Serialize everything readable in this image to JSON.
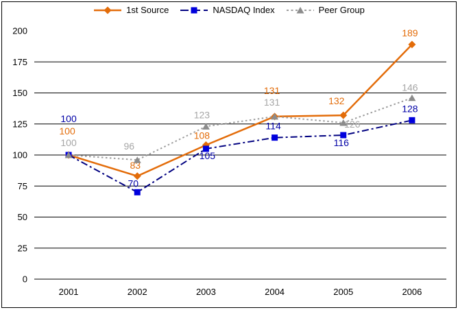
{
  "chart_data": {
    "type": "line",
    "title": "",
    "categories": [
      "2001",
      "2002",
      "2003",
      "2004",
      "2005",
      "2006"
    ],
    "series": [
      {
        "name": "1st Source",
        "values": [
          100,
          83,
          108,
          131,
          132,
          189
        ],
        "color": "#E36C09",
        "marker": "diamond",
        "marker_color": "#E36C09",
        "label_color": "#E36C09",
        "dash": "solid",
        "label_dx": [
          -2,
          -3,
          -6,
          -4,
          -10,
          -3
        ],
        "label_dy": [
          -30,
          -11,
          -9,
          -33,
          -16,
          -12
        ]
      },
      {
        "name": "NASDAQ Index",
        "values": [
          100,
          70,
          105,
          114,
          116,
          128
        ],
        "color": "#000080",
        "marker": "square",
        "marker_color": "#0000DD",
        "label_color": "#0000A6",
        "dash": "dashdot",
        "label_dx": [
          0,
          -6,
          2,
          -2,
          -3,
          -3
        ],
        "label_dy": [
          -48,
          -8,
          15,
          -12,
          16,
          -12
        ]
      },
      {
        "name": "Peer Group",
        "values": [
          100,
          96,
          123,
          131,
          126,
          146
        ],
        "color": "#9C9C9C",
        "marker": "triangle",
        "marker_color": "#8C8C8C",
        "label_color": "#A6A6A6",
        "dash": "dash",
        "label_dx": [
          0,
          -12,
          -6,
          -4,
          13,
          -3
        ],
        "label_dy": [
          -13,
          -15,
          -12,
          -16,
          7,
          -10
        ]
      }
    ],
    "xlabel": "",
    "ylabel": "",
    "ylim": [
      0,
      200
    ],
    "ytick_step": 25,
    "yticks": [
      0,
      25,
      50,
      75,
      100,
      125,
      150,
      175,
      200
    ],
    "grid": "horizontal, no gridline at 200",
    "legend_position": "top-center",
    "axis_text_color": "#000000",
    "gridline_color": "#000000",
    "background_color": "#ffffff"
  }
}
